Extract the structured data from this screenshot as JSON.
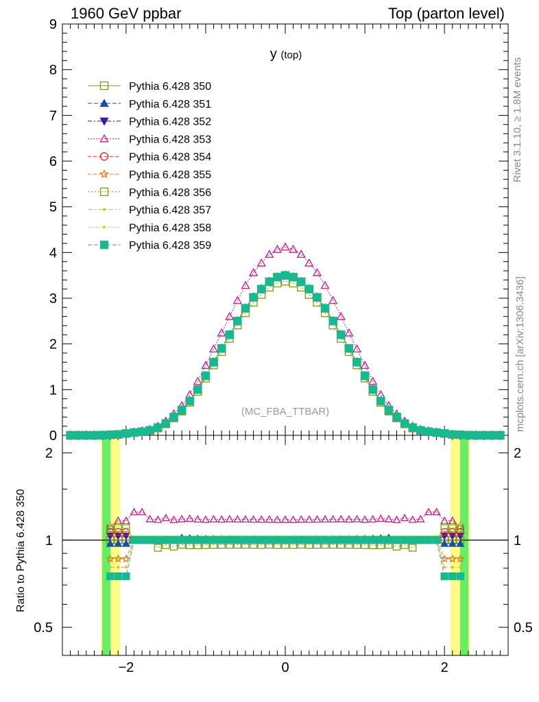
{
  "header": {
    "left": "1960 GeV ppbar",
    "right": "Top (parton level)"
  },
  "side_labels": {
    "rivet": "Rivet 3.1.10, ≥ 1.8M events",
    "mcplots": "mcplots.cern.ch [arXiv:1306.3436]"
  },
  "chart_data": [
    {
      "type": "line",
      "title": "y (top)",
      "watermark": "(MC_FBA_TTBAR)",
      "xlim": [
        -2.8,
        2.8
      ],
      "ylim": [
        0,
        9
      ],
      "yticks": [
        "0",
        "1",
        "2",
        "3",
        "4",
        "5",
        "6",
        "7",
        "8",
        "9"
      ],
      "legend_position": "top-left",
      "grid": false,
      "x": [
        -2.7,
        -2.6,
        -2.5,
        -2.4,
        -2.3,
        -2.2,
        -2.1,
        -2.0,
        -1.9,
        -1.8,
        -1.7,
        -1.6,
        -1.5,
        -1.4,
        -1.3,
        -1.2,
        -1.1,
        -1.0,
        -0.9,
        -0.8,
        -0.7,
        -0.6,
        -0.5,
        -0.4,
        -0.3,
        -0.2,
        -0.1,
        0.0,
        0.1,
        0.2,
        0.3,
        0.4,
        0.5,
        0.6,
        0.7,
        0.8,
        0.9,
        1.0,
        1.1,
        1.2,
        1.3,
        1.4,
        1.5,
        1.6,
        1.7,
        1.8,
        1.9,
        2.0,
        2.1,
        2.2,
        2.3,
        2.4,
        2.5,
        2.6,
        2.7
      ],
      "series": [
        {
          "name": "Pythia 6.428 350",
          "color": "#8c8c1e",
          "dash": "",
          "marker": "square-open",
          "values": [
            0.0,
            0.0,
            0.0,
            0.0,
            0.005,
            0.01,
            0.02,
            0.04,
            0.06,
            0.08,
            0.11,
            0.17,
            0.26,
            0.4,
            0.55,
            0.75,
            1.0,
            1.3,
            1.6,
            1.9,
            2.2,
            2.5,
            2.78,
            3.02,
            3.2,
            3.36,
            3.46,
            3.5,
            3.46,
            3.36,
            3.2,
            3.02,
            2.78,
            2.5,
            2.2,
            1.9,
            1.6,
            1.3,
            1.0,
            0.75,
            0.55,
            0.4,
            0.26,
            0.17,
            0.11,
            0.08,
            0.06,
            0.04,
            0.02,
            0.01,
            0.005,
            0.0,
            0.0,
            0.0,
            0.0
          ]
        },
        {
          "name": "Pythia 6.428 351",
          "color": "#1a4fa0",
          "dash": "6,3",
          "marker": "triangle-up",
          "values": [
            0.0,
            0.0,
            0.0,
            0.0,
            0.005,
            0.01,
            0.02,
            0.04,
            0.06,
            0.08,
            0.11,
            0.17,
            0.26,
            0.4,
            0.56,
            0.76,
            1.01,
            1.31,
            1.61,
            1.91,
            2.21,
            2.51,
            2.79,
            3.03,
            3.21,
            3.37,
            3.47,
            3.51,
            3.47,
            3.37,
            3.21,
            3.03,
            2.79,
            2.51,
            2.21,
            1.91,
            1.61,
            1.31,
            1.01,
            0.76,
            0.56,
            0.4,
            0.26,
            0.17,
            0.11,
            0.08,
            0.06,
            0.04,
            0.02,
            0.01,
            0.005,
            0.0,
            0.0,
            0.0,
            0.0
          ]
        },
        {
          "name": "Pythia 6.428 352",
          "color": "#3a1aa0",
          "dash": "6,3,2,3",
          "marker": "triangle-down",
          "values": [
            0.0,
            0.0,
            0.0,
            0.0,
            0.005,
            0.01,
            0.02,
            0.04,
            0.06,
            0.08,
            0.11,
            0.17,
            0.26,
            0.4,
            0.55,
            0.75,
            1.0,
            1.3,
            1.6,
            1.9,
            2.2,
            2.5,
            2.78,
            3.02,
            3.2,
            3.36,
            3.46,
            3.5,
            3.46,
            3.36,
            3.2,
            3.02,
            2.78,
            2.5,
            2.2,
            1.9,
            1.6,
            1.3,
            1.0,
            0.75,
            0.55,
            0.4,
            0.26,
            0.17,
            0.11,
            0.08,
            0.06,
            0.04,
            0.02,
            0.01,
            0.005,
            0.0,
            0.0,
            0.0,
            0.0
          ]
        },
        {
          "name": "Pythia 6.428 353",
          "color": "#c0198c",
          "dash": "2,2",
          "marker": "triangle-up-open",
          "values": [
            0.0,
            0.0,
            0.0,
            0.0,
            0.006,
            0.012,
            0.025,
            0.05,
            0.075,
            0.1,
            0.13,
            0.2,
            0.31,
            0.47,
            0.65,
            0.89,
            1.18,
            1.53,
            1.89,
            2.24,
            2.6,
            2.95,
            3.28,
            3.56,
            3.77,
            3.96,
            4.07,
            4.12,
            4.07,
            3.96,
            3.77,
            3.56,
            3.28,
            2.95,
            2.6,
            2.24,
            1.89,
            1.53,
            1.18,
            0.89,
            0.65,
            0.47,
            0.31,
            0.2,
            0.13,
            0.1,
            0.075,
            0.05,
            0.025,
            0.012,
            0.006,
            0.0,
            0.0,
            0.0,
            0.0
          ]
        },
        {
          "name": "Pythia 6.428 354",
          "color": "#e8202a",
          "dash": "5,3",
          "marker": "circle-open",
          "values": [
            0.0,
            0.0,
            0.0,
            0.0,
            0.005,
            0.01,
            0.02,
            0.04,
            0.06,
            0.08,
            0.11,
            0.17,
            0.26,
            0.4,
            0.55,
            0.75,
            1.0,
            1.3,
            1.6,
            1.9,
            2.2,
            2.5,
            2.78,
            3.02,
            3.2,
            3.36,
            3.46,
            3.5,
            3.46,
            3.36,
            3.2,
            3.02,
            2.78,
            2.5,
            2.2,
            1.9,
            1.6,
            1.3,
            1.0,
            0.75,
            0.55,
            0.4,
            0.26,
            0.17,
            0.11,
            0.08,
            0.06,
            0.04,
            0.02,
            0.01,
            0.005,
            0.0,
            0.0,
            0.0,
            0.0
          ]
        },
        {
          "name": "Pythia 6.428 355",
          "color": "#f07010",
          "dash": "5,3",
          "marker": "star-open",
          "values": [
            0.0,
            0.0,
            0.0,
            0.0,
            0.005,
            0.01,
            0.02,
            0.04,
            0.06,
            0.08,
            0.11,
            0.17,
            0.26,
            0.4,
            0.55,
            0.75,
            1.0,
            1.3,
            1.6,
            1.9,
            2.2,
            2.5,
            2.77,
            3.01,
            3.19,
            3.35,
            3.45,
            3.49,
            3.45,
            3.35,
            3.19,
            3.01,
            2.77,
            2.5,
            2.2,
            1.9,
            1.6,
            1.3,
            1.0,
            0.75,
            0.55,
            0.4,
            0.26,
            0.17,
            0.11,
            0.08,
            0.06,
            0.04,
            0.02,
            0.01,
            0.005,
            0.0,
            0.0,
            0.0,
            0.0
          ]
        },
        {
          "name": "Pythia 6.428 356",
          "color": "#7a9a10",
          "dash": "2,3",
          "marker": "square-open",
          "values": [
            0.0,
            0.0,
            0.0,
            0.0,
            0.005,
            0.01,
            0.02,
            0.04,
            0.06,
            0.08,
            0.11,
            0.16,
            0.25,
            0.38,
            0.53,
            0.72,
            0.96,
            1.25,
            1.54,
            1.83,
            2.12,
            2.41,
            2.68,
            2.91,
            3.08,
            3.24,
            3.33,
            3.37,
            3.33,
            3.24,
            3.08,
            2.91,
            2.68,
            2.41,
            2.12,
            1.83,
            1.54,
            1.25,
            0.96,
            0.72,
            0.53,
            0.38,
            0.25,
            0.16,
            0.11,
            0.08,
            0.06,
            0.04,
            0.02,
            0.01,
            0.005,
            0.0,
            0.0,
            0.0,
            0.0
          ]
        },
        {
          "name": "Pythia 6.428 357",
          "color": "#d8c020",
          "dash": "7,3,2,3",
          "marker": "dot",
          "values": [
            0.0,
            0.0,
            0.0,
            0.0,
            0.005,
            0.01,
            0.02,
            0.04,
            0.06,
            0.08,
            0.11,
            0.17,
            0.26,
            0.4,
            0.55,
            0.75,
            1.0,
            1.3,
            1.6,
            1.9,
            2.2,
            2.49,
            2.77,
            3.01,
            3.19,
            3.35,
            3.45,
            3.49,
            3.45,
            3.35,
            3.19,
            3.01,
            2.77,
            2.49,
            2.2,
            1.9,
            1.6,
            1.3,
            1.0,
            0.75,
            0.55,
            0.4,
            0.26,
            0.17,
            0.11,
            0.08,
            0.06,
            0.04,
            0.02,
            0.01,
            0.005,
            0.0,
            0.0,
            0.0,
            0.0
          ]
        },
        {
          "name": "Pythia 6.428 358",
          "color": "#b8d830",
          "dash": "2,2",
          "marker": "dot",
          "values": [
            0.0,
            0.0,
            0.0,
            0.0,
            0.005,
            0.01,
            0.02,
            0.04,
            0.06,
            0.08,
            0.11,
            0.17,
            0.26,
            0.4,
            0.55,
            0.75,
            1.0,
            1.3,
            1.6,
            1.9,
            2.2,
            2.5,
            2.78,
            3.02,
            3.2,
            3.36,
            3.46,
            3.5,
            3.46,
            3.36,
            3.2,
            3.02,
            2.78,
            2.5,
            2.2,
            1.9,
            1.6,
            1.3,
            1.0,
            0.75,
            0.55,
            0.4,
            0.26,
            0.17,
            0.11,
            0.08,
            0.06,
            0.04,
            0.02,
            0.01,
            0.005,
            0.0,
            0.0,
            0.0,
            0.0
          ]
        },
        {
          "name": "Pythia 6.428 359",
          "color": "#18b890",
          "dash": "6,3",
          "marker": "square",
          "values": [
            0.0,
            0.0,
            0.0,
            0.0,
            0.005,
            0.01,
            0.02,
            0.04,
            0.06,
            0.08,
            0.11,
            0.17,
            0.26,
            0.4,
            0.55,
            0.75,
            1.0,
            1.3,
            1.6,
            1.9,
            2.2,
            2.5,
            2.78,
            3.02,
            3.2,
            3.36,
            3.46,
            3.5,
            3.46,
            3.36,
            3.2,
            3.02,
            2.78,
            2.5,
            2.2,
            1.9,
            1.6,
            1.3,
            1.0,
            0.75,
            0.55,
            0.4,
            0.26,
            0.17,
            0.11,
            0.08,
            0.06,
            0.04,
            0.02,
            0.01,
            0.005,
            0.0,
            0.0,
            0.0,
            0.0
          ]
        }
      ]
    },
    {
      "type": "line",
      "ylabel": "Ratio to Pythia 6.428 350",
      "xlim": [
        -2.8,
        2.8
      ],
      "ylim": [
        0.4,
        2.3
      ],
      "ytick_values": [
        0.5,
        1,
        2
      ],
      "yticks": [
        "0.5",
        "1",
        "2"
      ],
      "xtick_values": [
        -2,
        0,
        2
      ],
      "xticks": [
        "−2",
        "0",
        "2"
      ],
      "reference_line": 1,
      "band": {
        "x_range": [
          -2.3,
          2.3
        ],
        "inner_color": "#66ee66",
        "outer_color": "#ffff88"
      },
      "ratio_values": {
        "Pythia 6.428 351": 1.01,
        "Pythia 6.428 352": 1.0,
        "Pythia 6.428 353": 1.18,
        "Pythia 6.428 354": 1.0,
        "Pythia 6.428 355": 0.99,
        "Pythia 6.428 356": 0.96,
        "Pythia 6.428 357": 0.995,
        "Pythia 6.428 358": 1.0,
        "Pythia 6.428 359": 1.0
      }
    }
  ]
}
